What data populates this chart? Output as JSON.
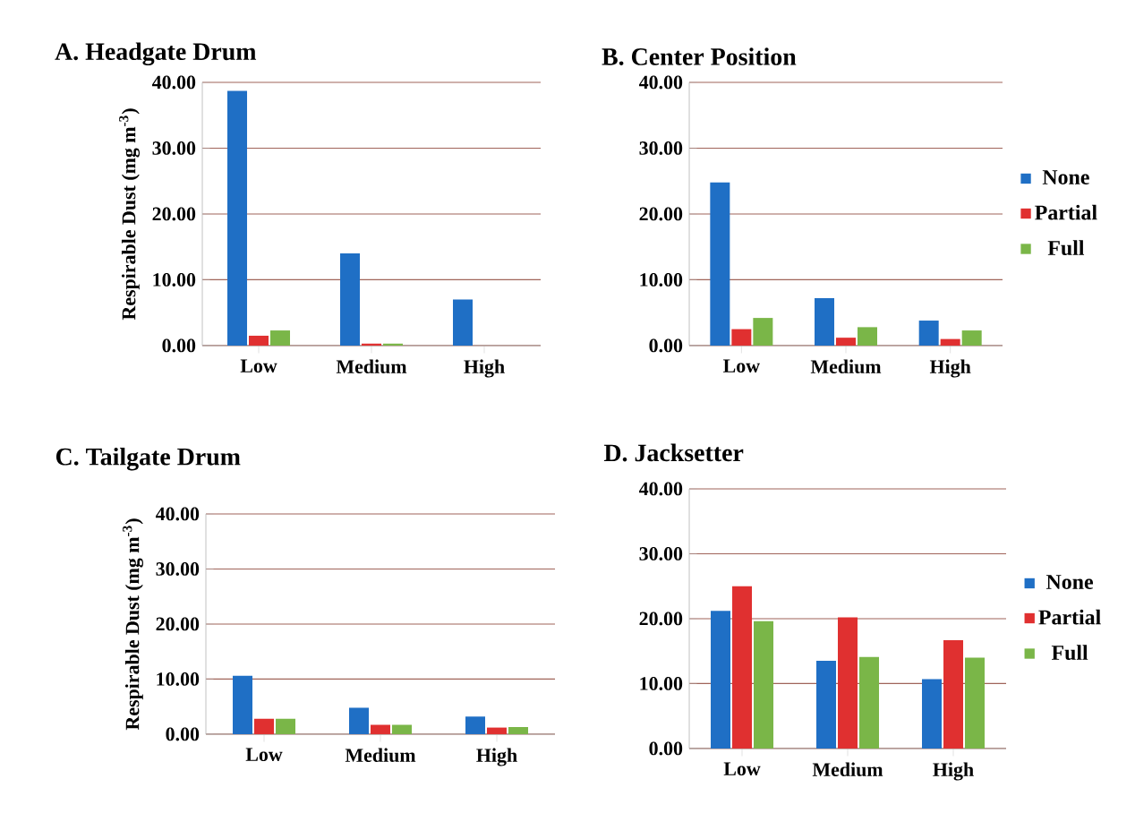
{
  "chart_data": [
    {
      "type": "bar",
      "title": "A. Headgate Drum",
      "ylabel": "Respirable Dust (mg m$^{-3}$)",
      "categories": [
        "Low",
        "Medium",
        "High"
      ],
      "series": [
        {
          "color": "#1f6fc5",
          "values": [
            38.7,
            14.0,
            7.0
          ]
        },
        {
          "color": "#e03030",
          "values": [
            1.5,
            0.3,
            0
          ]
        },
        {
          "color": "#7ab648",
          "values": [
            2.3,
            0.3,
            0
          ]
        }
      ],
      "ylim": [
        0,
        40
      ],
      "yticks": [
        {
          "value": 0,
          "label": "0.00"
        },
        {
          "value": 10,
          "label": "10.00"
        },
        {
          "value": 20,
          "label": "20.00"
        },
        {
          "value": 30,
          "label": "30.00"
        },
        {
          "value": 40,
          "label": "40.00"
        }
      ],
      "grid": "y"
    },
    {
      "type": "bar",
      "title": "B. Center Position",
      "categories": [
        "Low",
        "Medium",
        "High"
      ],
      "series": [
        {
          "name": "None",
          "color": "#1f6fc5",
          "values": [
            24.8,
            7.2,
            3.8
          ]
        },
        {
          "name": "Partial",
          "color": "#e03030",
          "values": [
            2.5,
            1.2,
            1.0
          ]
        },
        {
          "name": "Full",
          "color": "#7ab648",
          "values": [
            4.2,
            2.8,
            2.3
          ]
        }
      ],
      "ylim": [
        0,
        40
      ],
      "yticks": [
        {
          "value": 0,
          "label": "0.00"
        },
        {
          "value": 10,
          "label": "10.00"
        },
        {
          "value": 20,
          "label": "20.00"
        },
        {
          "value": 30,
          "label": "30.00"
        },
        {
          "value": 40,
          "label": "40.00"
        }
      ],
      "grid": "y",
      "legend": "right"
    },
    {
      "type": "bar",
      "title": "C. Tailgate Drum",
      "ylabel": "Respirable Dust (mg m$^{-3}$)",
      "categories": [
        "Low",
        "Medium",
        "High"
      ],
      "series": [
        {
          "color": "#1f6fc5",
          "values": [
            10.6,
            4.8,
            3.2
          ]
        },
        {
          "color": "#e03030",
          "values": [
            2.8,
            1.7,
            1.2
          ]
        },
        {
          "color": "#7ab648",
          "values": [
            2.8,
            1.7,
            1.3
          ]
        }
      ],
      "ylim": [
        0,
        40
      ],
      "yticks": [
        {
          "value": 0,
          "label": "0.00"
        },
        {
          "value": 10,
          "label": "10.00"
        },
        {
          "value": 20,
          "label": "20.00"
        },
        {
          "value": 30,
          "label": "30.00"
        },
        {
          "value": 40,
          "label": "40.00"
        }
      ],
      "grid": "y"
    },
    {
      "type": "bar",
      "title": "D. Jacksetter",
      "categories": [
        "Low",
        "Medium",
        "High"
      ],
      "series": [
        {
          "name": "None",
          "color": "#1f6fc5",
          "values": [
            21.2,
            13.5,
            10.7
          ]
        },
        {
          "name": "Partial",
          "color": "#e03030",
          "values": [
            25.0,
            20.2,
            16.7
          ]
        },
        {
          "name": "Full",
          "color": "#7ab648",
          "values": [
            19.6,
            14.1,
            14.0
          ]
        }
      ],
      "ylim": [
        0,
        40
      ],
      "yticks": [
        {
          "value": 0,
          "label": "0.00"
        },
        {
          "value": 10,
          "label": "10.00"
        },
        {
          "value": 20,
          "label": "20.00"
        },
        {
          "value": 30,
          "label": "30.00"
        },
        {
          "value": 40,
          "label": "40.00"
        }
      ],
      "grid": "y",
      "legend": "right"
    }
  ]
}
